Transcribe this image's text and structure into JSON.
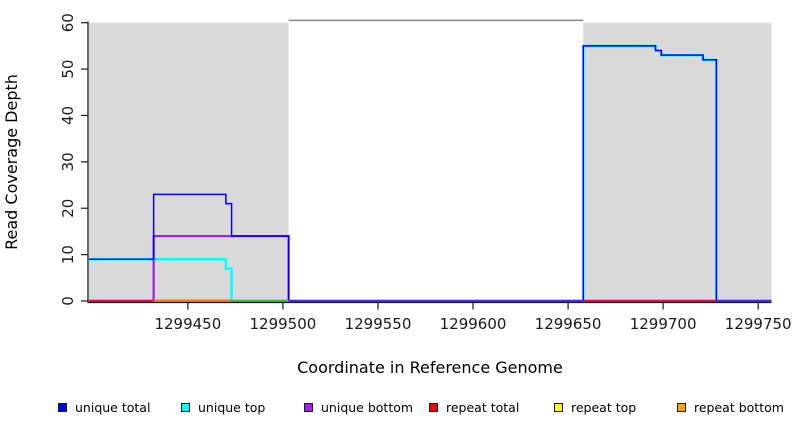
{
  "chart_data": {
    "type": "line",
    "step_mode": "after",
    "title": "",
    "xlabel": "Coordinate in Reference Genome",
    "ylabel": "Read Coverage Depth",
    "xlim": [
      1299398,
      1299757
    ],
    "ylim": [
      0,
      60
    ],
    "grid": false,
    "legend_position": "bottom",
    "x_tick_values": [
      1299450,
      1299500,
      1299550,
      1299600,
      1299650,
      1299700,
      1299750
    ],
    "x_tick_labels": [
      "1299450",
      "1299500",
      "1299550",
      "1299600",
      "1299650",
      "1299700",
      "1299750"
    ],
    "y_tick_values": [
      0,
      10,
      20,
      30,
      40,
      50,
      60
    ],
    "y_tick_labels": [
      "0",
      "10",
      "20",
      "30",
      "40",
      "50",
      "60"
    ],
    "shaded_regions": [
      {
        "name": "shaded-region-left",
        "x0": 1299398,
        "x1": 1299503,
        "color": "#D9D9D9"
      },
      {
        "name": "shaded-region-right",
        "x0": 1299658,
        "x1": 1299757,
        "color": "#D9D9D9"
      }
    ],
    "offscale_marker": {
      "x0": 1299503,
      "x1": 1299658,
      "y": 60.5,
      "color": "#8A8A8A",
      "note": "gray line just above y=60 spanning the unshaded gap"
    },
    "series": [
      {
        "name": "unique total",
        "color": "#0000FF",
        "width": 1.5,
        "steps": [
          [
            1299398,
            9
          ],
          [
            1299432,
            23
          ],
          [
            1299470,
            21
          ],
          [
            1299473,
            14
          ],
          [
            1299503,
            0
          ],
          [
            1299658,
            55
          ],
          [
            1299696,
            54
          ],
          [
            1299699,
            53
          ],
          [
            1299721,
            52
          ],
          [
            1299728,
            0
          ],
          [
            1299757,
            0
          ]
        ]
      },
      {
        "name": "unique top",
        "color": "#00FFFF",
        "width": 2.4,
        "steps": [
          [
            1299398,
            9
          ],
          [
            1299432,
            9
          ],
          [
            1299470,
            7
          ],
          [
            1299473,
            0
          ],
          [
            1299658,
            55
          ],
          [
            1299696,
            54
          ],
          [
            1299699,
            53
          ],
          [
            1299721,
            52
          ],
          [
            1299728,
            0
          ],
          [
            1299757,
            0
          ]
        ]
      },
      {
        "name": "unique bottom",
        "color": "#A020F0",
        "width": 2.2,
        "steps": [
          [
            1299398,
            0
          ],
          [
            1299432,
            14
          ],
          [
            1299503,
            0
          ],
          [
            1299757,
            0
          ]
        ]
      },
      {
        "name": "repeat total",
        "color": "#FF0000",
        "width": 1.4,
        "steps": [
          [
            1299398,
            0
          ],
          [
            1299757,
            0
          ]
        ]
      },
      {
        "name": "repeat top",
        "color": "#FFFF00",
        "width": 1.4,
        "steps": [
          [
            1299398,
            0
          ],
          [
            1299757,
            0
          ]
        ]
      },
      {
        "name": "repeat bottom",
        "color": "#FFA500",
        "width": 1.4,
        "steps": [
          [
            1299398,
            0
          ],
          [
            1299757,
            0
          ]
        ]
      }
    ],
    "draw_order": [
      4,
      3,
      5,
      1,
      2,
      0
    ],
    "baseline_overdraw": [
      {
        "x0": 1299398,
        "x1": 1299432,
        "under": "#A020F0",
        "over": "#FF0000"
      },
      {
        "x0": 1299432,
        "x1": 1299473,
        "under": "#FF0000",
        "over": "#FFA500"
      },
      {
        "x0": 1299473,
        "x1": 1299503,
        "under": "#4FB050",
        "over": "#4FB050",
        "note": "yellow over cyan renders green"
      },
      {
        "x0": 1299503,
        "x1": 1299658,
        "under": "#A020F0",
        "over": "#2B2BF0"
      },
      {
        "x0": 1299658,
        "x1": 1299728,
        "under": "#A020F0",
        "over": "#FF0000"
      },
      {
        "x0": 1299728,
        "x1": 1299757,
        "under": "#A020F0",
        "over": "#2B2BF0"
      }
    ],
    "legend": [
      {
        "label": "unique total",
        "color": "#0000FF"
      },
      {
        "label": "unique top",
        "color": "#00FFFF"
      },
      {
        "label": "unique bottom",
        "color": "#A020F0"
      },
      {
        "label": "repeat total",
        "color": "#FF0000"
      },
      {
        "label": "repeat top",
        "color": "#FFFF00"
      },
      {
        "label": "repeat bottom",
        "color": "#FFA500"
      }
    ]
  }
}
